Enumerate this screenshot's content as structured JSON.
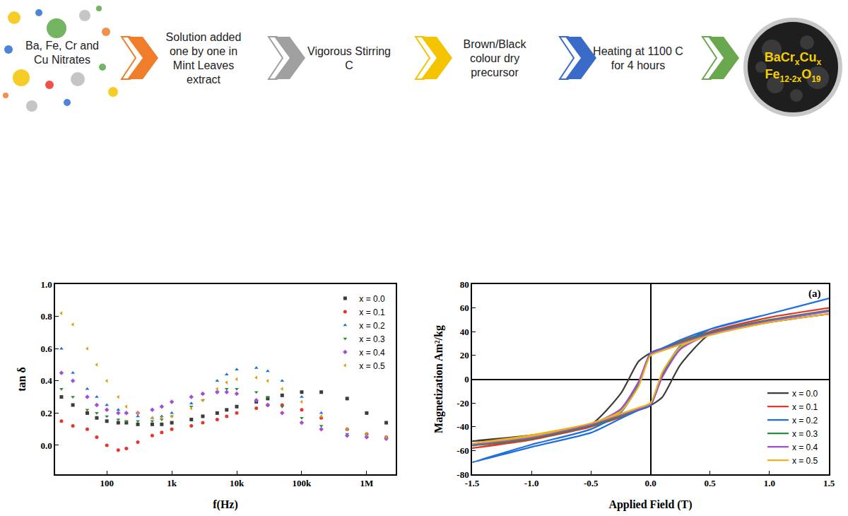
{
  "flow": {
    "start": "Ba, Fe, Cr and Cu Nitrates",
    "steps": [
      "Solution added one by one in Mint Leaves extract",
      "Vigorous Stirring C",
      "Brown/Black colour dry precursor",
      "Heating at 1100 C  for 4 hours"
    ],
    "product": [
      [
        {
          "text": "BaCr"
        },
        {
          "text": "x",
          "sub": true
        },
        {
          "text": "Cu"
        },
        {
          "text": "x",
          "sub": true
        }
      ],
      [
        {
          "text": "Fe"
        },
        {
          "text": "12-2x",
          "sub": true
        },
        {
          "text": "O"
        },
        {
          "text": "19",
          "sub": true
        }
      ]
    ]
  },
  "chart_data": [
    {
      "type": "scatter",
      "x_label": "f(Hz)",
      "y_label": "tan δ",
      "log": "x",
      "grid": false,
      "legend": "upper right",
      "xlim": [
        16,
        2800000
      ],
      "xticks": [
        100,
        {
          "value": 1000,
          "label": "1k"
        },
        {
          "value": 10000,
          "label": "10k"
        },
        {
          "value": 100000,
          "label": "100k"
        },
        {
          "value": 1000000,
          "label": "1M"
        }
      ],
      "ylim": [
        -0.18,
        1.0
      ],
      "yticks": [
        {
          "value": 0,
          "label": "0.0"
        },
        0.2,
        0.4,
        0.6,
        0.8,
        {
          "value": 1,
          "label": "1.0"
        }
      ],
      "x": [
        20,
        30,
        50,
        70,
        100,
        150,
        200,
        300,
        500,
        700,
        1000,
        2000,
        3000,
        5000,
        7000,
        10000,
        20000,
        30000,
        50000,
        100000,
        200000,
        500000,
        1000000,
        2000000
      ],
      "series": [
        {
          "name": "x = 0.0",
          "color": "#3c3c3c",
          "marker": "square",
          "values": [
            0.3,
            0.25,
            0.2,
            0.17,
            0.15,
            0.14,
            0.14,
            0.13,
            0.13,
            0.13,
            0.14,
            0.16,
            0.18,
            0.2,
            0.22,
            0.24,
            0.27,
            0.29,
            0.31,
            0.33,
            0.33,
            0.29,
            0.2,
            0.14
          ]
        },
        {
          "name": "x = 0.1",
          "color": "#e8352b",
          "marker": "circle",
          "values": [
            0.15,
            0.12,
            0.1,
            0.05,
            0.0,
            -0.03,
            -0.02,
            0.02,
            0.06,
            0.08,
            0.1,
            0.12,
            0.14,
            0.16,
            0.18,
            0.2,
            0.23,
            0.25,
            0.25,
            0.22,
            0.17,
            0.1,
            0.07,
            0.05
          ]
        },
        {
          "name": "x = 0.2",
          "color": "#1f6fe0",
          "marker": "triangle-up",
          "values": [
            0.6,
            0.45,
            0.35,
            0.3,
            0.25,
            0.22,
            0.2,
            0.18,
            0.17,
            0.18,
            0.2,
            0.26,
            0.32,
            0.4,
            0.44,
            0.47,
            0.48,
            0.46,
            0.4,
            0.3,
            0.2,
            0.1,
            0.07,
            0.05
          ]
        },
        {
          "name": "x = 0.3",
          "color": "#2e8b3e",
          "marker": "triangle-down",
          "values": [
            0.35,
            0.3,
            0.22,
            0.2,
            0.18,
            0.16,
            0.15,
            0.15,
            0.15,
            0.16,
            0.18,
            0.24,
            0.28,
            0.33,
            0.35,
            0.35,
            0.33,
            0.3,
            0.24,
            0.17,
            0.12,
            0.07,
            0.05,
            0.04
          ]
        },
        {
          "name": "x = 0.4",
          "color": "#a24fd6",
          "marker": "diamond",
          "values": [
            0.45,
            0.4,
            0.3,
            0.25,
            0.22,
            0.2,
            0.2,
            0.2,
            0.22,
            0.24,
            0.27,
            0.3,
            0.32,
            0.33,
            0.33,
            0.32,
            0.28,
            0.25,
            0.2,
            0.14,
            0.1,
            0.06,
            0.05,
            0.04
          ]
        },
        {
          "name": "x = 0.5",
          "color": "#d9a21a",
          "marker": "triangle-left",
          "values": [
            0.82,
            0.75,
            0.6,
            0.5,
            0.4,
            0.3,
            0.24,
            0.2,
            0.17,
            0.17,
            0.18,
            0.23,
            0.28,
            0.35,
            0.39,
            0.41,
            0.42,
            0.4,
            0.35,
            0.27,
            0.18,
            0.1,
            0.07,
            0.05
          ]
        }
      ]
    },
    {
      "type": "line",
      "x_label": "Applied Field (T)",
      "y_label": "Magnetization Am²/kg",
      "grid": false,
      "legend": "lower right",
      "annotations": [
        {
          "text": "(a)",
          "x": 1.38,
          "y": 72
        }
      ],
      "xlim": [
        -1.5,
        1.5
      ],
      "xticks": [
        -1.5,
        {
          "value": -1,
          "label": "-1.0"
        },
        -0.5,
        {
          "value": 0,
          "label": "0.0"
        },
        0.5,
        {
          "value": 1,
          "label": "1.0"
        },
        1.5
      ],
      "ylim": [
        -80,
        80
      ],
      "yticks": [
        -80,
        -60,
        -40,
        -20,
        0,
        20,
        40,
        60,
        80
      ],
      "x": [
        1.5,
        1.0,
        0.5,
        0.25,
        0.1,
        0,
        -0.1,
        -0.25,
        -0.5,
        -1.0,
        -1.5,
        -1.0,
        -0.5,
        -0.25,
        -0.1,
        0,
        0.1,
        0.25,
        0.5,
        1.0,
        1.5
      ],
      "series": [
        {
          "name": "x = 0.0",
          "color": "#3c3c3c",
          "values": [
            55,
            48,
            38,
            30,
            25,
            22,
            15,
            -12,
            -38,
            -47,
            -52,
            -48,
            -38,
            -30,
            -25,
            -22,
            -15,
            12,
            38,
            48,
            55
          ]
        },
        {
          "name": "x = 0.1",
          "color": "#e8352b",
          "values": [
            60,
            52,
            40,
            32,
            26,
            22,
            -3,
            -27,
            -40,
            -50,
            -58,
            -51,
            -40,
            -32,
            -26,
            -22,
            3,
            27,
            40,
            52,
            60
          ]
        },
        {
          "name": "x = 0.2",
          "color": "#1f6fe0",
          "values": [
            68,
            55,
            42,
            33,
            26,
            22,
            -5,
            -28,
            -42,
            -55,
            -70,
            -57,
            -45,
            -33,
            -26,
            -22,
            5,
            28,
            42,
            55,
            68
          ]
        },
        {
          "name": "x = 0.3",
          "color": "#2e8b3e",
          "values": [
            58,
            50,
            39,
            31,
            25,
            21,
            -3,
            -26,
            -39,
            -49,
            -56,
            -50,
            -39,
            -31,
            -25,
            -21,
            3,
            26,
            39,
            50,
            58
          ]
        },
        {
          "name": "x = 0.4",
          "color": "#a24fd6",
          "values": [
            57,
            49,
            38,
            30,
            25,
            21,
            -2,
            -25,
            -38,
            -48,
            -55,
            -49,
            -38,
            -30,
            -25,
            -21,
            2,
            25,
            38,
            49,
            57
          ]
        },
        {
          "name": "x = 0.5",
          "color": "#e9b320",
          "values": [
            55,
            48,
            37,
            29,
            24,
            20,
            -6,
            -27,
            -37,
            -47,
            -54,
            -48,
            -37,
            -29,
            -24,
            -20,
            6,
            27,
            37,
            48,
            55
          ]
        }
      ]
    }
  ]
}
